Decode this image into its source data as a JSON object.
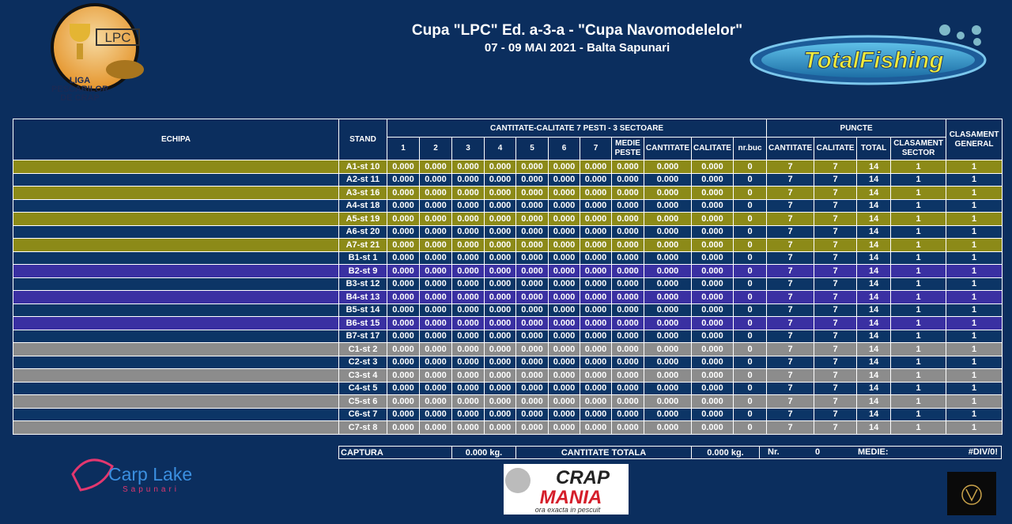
{
  "header": {
    "title": "Cupa \"LPC\" Ed. a-3-a - \"Cupa Navomodelelor\"",
    "subtitle": "07 - 09 MAI 2021 - Balta Sapunari"
  },
  "logos": {
    "lpc": "LPC",
    "liga": [
      "LIGA",
      "PESCARILOR",
      "DE CRAP"
    ],
    "total_fishing": "TotalFishing",
    "carp_lake": "Carp Lake",
    "sapunari": "Sapunari",
    "crap": "CRAP",
    "mania": "MANIA",
    "slogan": "ora exacta in pescuit"
  },
  "table": {
    "headers": {
      "team": "ECHIPA",
      "stand": "STAND",
      "group1": "CANTITATE-CALITATE 7 PESTI - 3 SECTOARE",
      "group2": "PUNCTE",
      "general": "CLASAMENT GENERAL",
      "sub": [
        "1",
        "2",
        "3",
        "4",
        "5",
        "6",
        "7",
        "MEDIE PESTE",
        "CANTITATE",
        "CALITATE",
        "nr.buc",
        "CANTITATE",
        "CALITATE",
        "TOTAL",
        "CLASAMENT SECTOR"
      ]
    },
    "rows": [
      [
        "A1-st 10",
        "0.000",
        "0.000",
        "0.000",
        "0.000",
        "0.000",
        "0.000",
        "0.000",
        "0.000",
        "0.000",
        "0.000",
        "0",
        "7",
        "7",
        "14",
        "1",
        "1"
      ],
      [
        "A2-st 11",
        "0.000",
        "0.000",
        "0.000",
        "0.000",
        "0.000",
        "0.000",
        "0.000",
        "0.000",
        "0.000",
        "0.000",
        "0",
        "7",
        "7",
        "14",
        "1",
        "1"
      ],
      [
        "A3-st 16",
        "0.000",
        "0.000",
        "0.000",
        "0.000",
        "0.000",
        "0.000",
        "0.000",
        "0.000",
        "0.000",
        "0.000",
        "0",
        "7",
        "7",
        "14",
        "1",
        "1"
      ],
      [
        "A4-st 18",
        "0.000",
        "0.000",
        "0.000",
        "0.000",
        "0.000",
        "0.000",
        "0.000",
        "0.000",
        "0.000",
        "0.000",
        "0",
        "7",
        "7",
        "14",
        "1",
        "1"
      ],
      [
        "A5-st 19",
        "0.000",
        "0.000",
        "0.000",
        "0.000",
        "0.000",
        "0.000",
        "0.000",
        "0.000",
        "0.000",
        "0.000",
        "0",
        "7",
        "7",
        "14",
        "1",
        "1"
      ],
      [
        "A6-st 20",
        "0.000",
        "0.000",
        "0.000",
        "0.000",
        "0.000",
        "0.000",
        "0.000",
        "0.000",
        "0.000",
        "0.000",
        "0",
        "7",
        "7",
        "14",
        "1",
        "1"
      ],
      [
        "A7-st 21",
        "0.000",
        "0.000",
        "0.000",
        "0.000",
        "0.000",
        "0.000",
        "0.000",
        "0.000",
        "0.000",
        "0.000",
        "0",
        "7",
        "7",
        "14",
        "1",
        "1"
      ],
      [
        "B1-st 1",
        "0.000",
        "0.000",
        "0.000",
        "0.000",
        "0.000",
        "0.000",
        "0.000",
        "0.000",
        "0.000",
        "0.000",
        "0",
        "7",
        "7",
        "14",
        "1",
        "1"
      ],
      [
        "B2-st 9",
        "0.000",
        "0.000",
        "0.000",
        "0.000",
        "0.000",
        "0.000",
        "0.000",
        "0.000",
        "0.000",
        "0.000",
        "0",
        "7",
        "7",
        "14",
        "1",
        "1"
      ],
      [
        "B3-st 12",
        "0.000",
        "0.000",
        "0.000",
        "0.000",
        "0.000",
        "0.000",
        "0.000",
        "0.000",
        "0.000",
        "0.000",
        "0",
        "7",
        "7",
        "14",
        "1",
        "1"
      ],
      [
        "B4-st 13",
        "0.000",
        "0.000",
        "0.000",
        "0.000",
        "0.000",
        "0.000",
        "0.000",
        "0.000",
        "0.000",
        "0.000",
        "0",
        "7",
        "7",
        "14",
        "1",
        "1"
      ],
      [
        "B5-st 14",
        "0.000",
        "0.000",
        "0.000",
        "0.000",
        "0.000",
        "0.000",
        "0.000",
        "0.000",
        "0.000",
        "0.000",
        "0",
        "7",
        "7",
        "14",
        "1",
        "1"
      ],
      [
        "B6-st 15",
        "0.000",
        "0.000",
        "0.000",
        "0.000",
        "0.000",
        "0.000",
        "0.000",
        "0.000",
        "0.000",
        "0.000",
        "0",
        "7",
        "7",
        "14",
        "1",
        "1"
      ],
      [
        "B7-st 17",
        "0.000",
        "0.000",
        "0.000",
        "0.000",
        "0.000",
        "0.000",
        "0.000",
        "0.000",
        "0.000",
        "0.000",
        "0",
        "7",
        "7",
        "14",
        "1",
        "1"
      ],
      [
        "C1-st 2",
        "0.000",
        "0.000",
        "0.000",
        "0.000",
        "0.000",
        "0.000",
        "0.000",
        "0.000",
        "0.000",
        "0.000",
        "0",
        "7",
        "7",
        "14",
        "1",
        "1"
      ],
      [
        "C2-st 3",
        "0.000",
        "0.000",
        "0.000",
        "0.000",
        "0.000",
        "0.000",
        "0.000",
        "0.000",
        "0.000",
        "0.000",
        "0",
        "7",
        "7",
        "14",
        "1",
        "1"
      ],
      [
        "C3-st 4",
        "0.000",
        "0.000",
        "0.000",
        "0.000",
        "0.000",
        "0.000",
        "0.000",
        "0.000",
        "0.000",
        "0.000",
        "0",
        "7",
        "7",
        "14",
        "1",
        "1"
      ],
      [
        "C4-st 5",
        "0.000",
        "0.000",
        "0.000",
        "0.000",
        "0.000",
        "0.000",
        "0.000",
        "0.000",
        "0.000",
        "0.000",
        "0",
        "7",
        "7",
        "14",
        "1",
        "1"
      ],
      [
        "C5-st 6",
        "0.000",
        "0.000",
        "0.000",
        "0.000",
        "0.000",
        "0.000",
        "0.000",
        "0.000",
        "0.000",
        "0.000",
        "0",
        "7",
        "7",
        "14",
        "1",
        "1"
      ],
      [
        "C6-st 7",
        "0.000",
        "0.000",
        "0.000",
        "0.000",
        "0.000",
        "0.000",
        "0.000",
        "0.000",
        "0.000",
        "0.000",
        "0",
        "7",
        "7",
        "14",
        "1",
        "1"
      ],
      [
        "C7-st 8",
        "0.000",
        "0.000",
        "0.000",
        "0.000",
        "0.000",
        "0.000",
        "0.000",
        "0.000",
        "0.000",
        "0.000",
        "0",
        "7",
        "7",
        "14",
        "1",
        "1"
      ]
    ]
  },
  "footer": {
    "captura": "CAPTURA",
    "captura_value": "0.000 kg.",
    "total_label": "CANTITATE TOTALA",
    "total_value": "0.000 kg.",
    "nr_label": "Nr.",
    "nr_value": "0",
    "medie_label": "MEDIE:",
    "medie_value": "#DIV/0!"
  }
}
